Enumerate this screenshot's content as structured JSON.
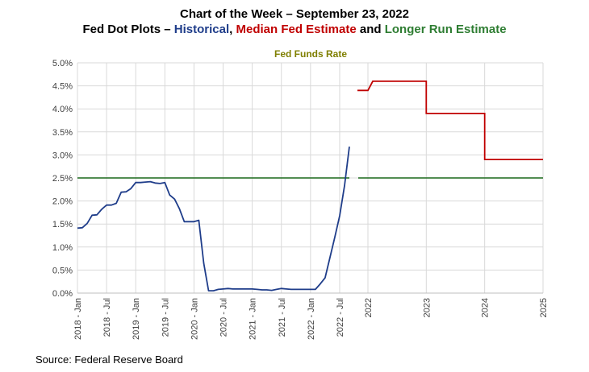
{
  "title": {
    "line1": "Chart of the Week – September 23, 2022",
    "line2_prefix": "Fed Dot Plots – ",
    "line2_hist": "Historical",
    "line2_sep": ", ",
    "line2_median": "Median Fed Estimate",
    "line2_and": " and ",
    "line2_longer": "Longer Run Estimate"
  },
  "source": "Source: Federal Reserve Board",
  "colors": {
    "historical": "#1f3d8a",
    "median": "#c00000",
    "longer_run": "#3a7d3a",
    "grid": "#d9d9d9"
  },
  "chart_data": {
    "type": "line",
    "title": "Fed Funds Rate",
    "xlabel": "",
    "ylabel": "",
    "ylim": [
      0,
      5.0
    ],
    "y_ticks": [
      "0.0%",
      "0.5%",
      "1.0%",
      "1.5%",
      "2.0%",
      "2.5%",
      "3.0%",
      "3.5%",
      "4.0%",
      "4.5%",
      "5.0%"
    ],
    "x_ticks": [
      "2018 - Jan",
      "2018 - Jul",
      "2019 - Jan",
      "2019 - Jul",
      "2020 - Jan",
      "2020 - Jul",
      "2021 - Jan",
      "2021 - Jul",
      "2022 - Jan",
      "2022 - Jul",
      "2022",
      "2023",
      "2024",
      "2025",
      "2022",
      "2023",
      "2024",
      "2025"
    ],
    "grid": true,
    "series": [
      {
        "name": "Historical",
        "x": [
          "2018-01",
          "2018-02",
          "2018-03",
          "2018-04",
          "2018-05",
          "2018-06",
          "2018-07",
          "2018-08",
          "2018-09",
          "2018-10",
          "2018-11",
          "2018-12",
          "2019-01",
          "2019-02",
          "2019-03",
          "2019-04",
          "2019-05",
          "2019-06",
          "2019-07",
          "2019-08",
          "2019-09",
          "2019-10",
          "2019-11",
          "2019-12",
          "2020-01",
          "2020-02",
          "2020-03",
          "2020-04",
          "2020-05",
          "2020-06",
          "2020-07",
          "2020-08",
          "2020-09",
          "2020-10",
          "2020-11",
          "2020-12",
          "2021-01",
          "2021-02",
          "2021-03",
          "2021-04",
          "2021-05",
          "2021-06",
          "2021-07",
          "2021-08",
          "2021-09",
          "2021-10",
          "2021-11",
          "2021-12",
          "2022-01",
          "2022-02",
          "2022-03",
          "2022-04",
          "2022-05",
          "2022-06",
          "2022-07",
          "2022-08",
          "2022-09"
        ],
        "values": [
          1.41,
          1.42,
          1.51,
          1.69,
          1.7,
          1.82,
          1.91,
          1.91,
          1.95,
          2.19,
          2.2,
          2.27,
          2.4,
          2.4,
          2.41,
          2.42,
          2.39,
          2.38,
          2.4,
          2.13,
          2.04,
          1.83,
          1.55,
          1.55,
          1.55,
          1.58,
          0.65,
          0.05,
          0.05,
          0.08,
          0.09,
          0.1,
          0.09,
          0.09,
          0.09,
          0.09,
          0.09,
          0.08,
          0.07,
          0.07,
          0.06,
          0.08,
          0.1,
          0.09,
          0.08,
          0.08,
          0.08,
          0.08,
          0.08,
          0.08,
          0.2,
          0.33,
          0.77,
          1.21,
          1.68,
          2.33,
          3.18
        ]
      },
      {
        "name": "Median Fed Estimate",
        "x": [
          2022.0,
          2022.25,
          2022.25,
          2022.5,
          2022.5,
          2023.0,
          2023.0,
          2024.0,
          2024.0,
          2025.0
        ],
        "values": [
          4.4,
          4.4,
          4.4,
          4.6,
          4.6,
          4.6,
          3.9,
          3.9,
          2.9,
          2.9
        ]
      },
      {
        "name": "Longer Run Estimate",
        "segments": [
          {
            "x_start": "2018-01",
            "x_end": "2022-09",
            "value": 2.5
          },
          {
            "x_start": 2022.0,
            "x_end": 2025.0,
            "value": 2.5
          }
        ]
      }
    ]
  }
}
